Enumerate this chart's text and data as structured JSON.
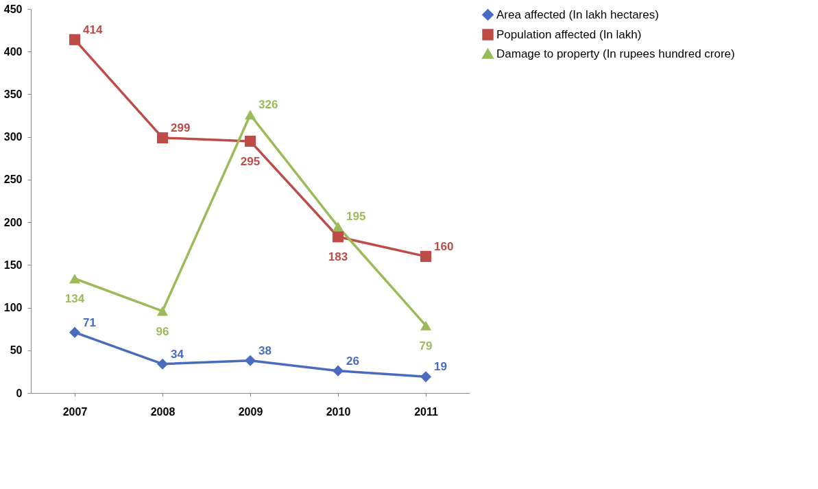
{
  "chart_data": {
    "type": "line",
    "categories": [
      "2007",
      "2008",
      "2009",
      "2010",
      "2011"
    ],
    "series": [
      {
        "name": "Area affected (In lakh hectares)",
        "color": "#4a6bbf",
        "marker": "diamond",
        "values": [
          71,
          34,
          38,
          26,
          19
        ]
      },
      {
        "name": "Population affected (In lakh)",
        "color": "#be4b48",
        "marker": "square",
        "values": [
          414,
          299,
          295,
          183,
          160
        ]
      },
      {
        "name": "Damage to property (In rupees hundred crore)",
        "color": "#9bbb59",
        "marker": "triangle",
        "values": [
          134,
          96,
          326,
          195,
          79
        ]
      }
    ],
    "ylim": [
      0,
      450
    ],
    "yticks": [
      0,
      50,
      100,
      150,
      200,
      250,
      300,
      350,
      400,
      450
    ],
    "data_labels": true,
    "grid": false,
    "legend": "right",
    "line_style": "solid"
  }
}
